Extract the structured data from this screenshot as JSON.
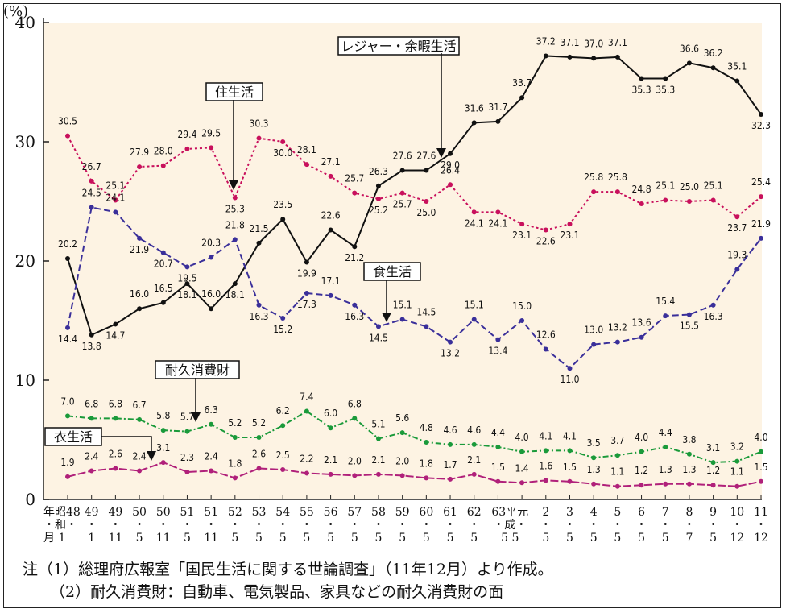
{
  "chart_data": {
    "type": "line",
    "ylabel": "(%)",
    "ylim": [
      0,
      40
    ],
    "yticks": [
      0,
      10,
      20,
      30,
      40
    ],
    "x_row_year": [
      "年昭48",
      "49",
      "49",
      "50",
      "50",
      "51",
      "51",
      "52",
      "53",
      "54",
      "55",
      "56",
      "57",
      "58",
      "59",
      "60",
      "61",
      "62",
      "63平元",
      "2",
      "3",
      "4",
      "5",
      "6",
      "7",
      "8",
      "9",
      "10",
      "11"
    ],
    "x_row_era": [
      "・和・",
      "・",
      "・",
      "・",
      "・",
      "・",
      "・",
      "・",
      "・",
      "・",
      "・",
      "・",
      "・",
      "・",
      "・",
      "・",
      "・",
      "・",
      "・成・",
      "・",
      "・",
      "・",
      "・",
      "・",
      "・",
      "・",
      "・",
      "・",
      "・"
    ],
    "x_row_month": [
      "月 1",
      "1",
      "11",
      "5",
      "11",
      "5",
      "11",
      "5",
      "5",
      "5",
      "5",
      "5",
      "5",
      "5",
      "5",
      "5",
      "5",
      "5",
      "5 5",
      "5",
      "5",
      "5",
      "5",
      "5",
      "5",
      "7",
      "5",
      "12",
      "12"
    ],
    "series": [
      {
        "name": "レジャー・余暇生活",
        "color": "#111111",
        "dash": "",
        "values": [
          20.2,
          13.8,
          14.7,
          16.0,
          16.5,
          18.1,
          16.0,
          18.1,
          21.5,
          23.5,
          19.9,
          22.6,
          21.2,
          26.3,
          27.6,
          27.6,
          29.0,
          31.6,
          31.7,
          33.7,
          37.2,
          37.1,
          37.0,
          37.1,
          35.3,
          35.3,
          36.6,
          36.2,
          35.1,
          32.3
        ]
      },
      {
        "name": "住生活",
        "color": "#c8105c",
        "dash": "3,3",
        "values": [
          30.5,
          26.7,
          25.1,
          27.9,
          28.0,
          29.4,
          29.5,
          25.3,
          30.3,
          30.0,
          28.1,
          27.1,
          25.7,
          25.2,
          25.7,
          25.0,
          26.4,
          24.1,
          24.1,
          23.1,
          22.6,
          23.1,
          25.8,
          25.8,
          24.8,
          25.1,
          25.0,
          25.1,
          23.7,
          25.4
        ]
      },
      {
        "name": "食生活",
        "color": "#3a2f9a",
        "dash": "8,4",
        "values": [
          14.4,
          24.5,
          24.1,
          21.9,
          20.7,
          19.5,
          20.3,
          21.8,
          16.3,
          15.2,
          17.3,
          17.1,
          16.3,
          14.5,
          15.1,
          14.5,
          13.2,
          15.1,
          13.4,
          15.0,
          12.6,
          11.0,
          13.0,
          13.2,
          13.6,
          15.4,
          15.5,
          16.3,
          19.3,
          21.9
        ]
      },
      {
        "name": "耐久消費財",
        "color": "#1a9a3a",
        "dash": "7,3,2,3",
        "values": [
          7.0,
          6.8,
          6.8,
          6.7,
          5.8,
          5.7,
          6.3,
          5.2,
          5.2,
          6.2,
          7.4,
          6.0,
          6.8,
          5.1,
          5.6,
          4.8,
          4.6,
          4.6,
          4.4,
          4.0,
          4.1,
          4.1,
          3.5,
          3.7,
          4.0,
          4.4,
          3.8,
          3.1,
          3.2,
          4.0
        ]
      },
      {
        "name": "衣生活",
        "color": "#b0207a",
        "dash": "10,3",
        "values": [
          1.9,
          2.4,
          2.6,
          2.4,
          3.1,
          2.3,
          2.4,
          1.8,
          2.6,
          2.5,
          2.2,
          2.1,
          2.0,
          2.1,
          2.0,
          1.8,
          1.7,
          2.1,
          1.5,
          1.4,
          1.6,
          1.5,
          1.3,
          1.1,
          1.2,
          1.3,
          1.3,
          1.2,
          1.1,
          1.5
        ]
      }
    ]
  },
  "notes": [
    "注（1）総理府広報室「国民生活に関する世論調査」（11年12月）より作成。",
    "（2）耐久消費財：自動車、電気製品、家具などの耐久消費財の面"
  ]
}
